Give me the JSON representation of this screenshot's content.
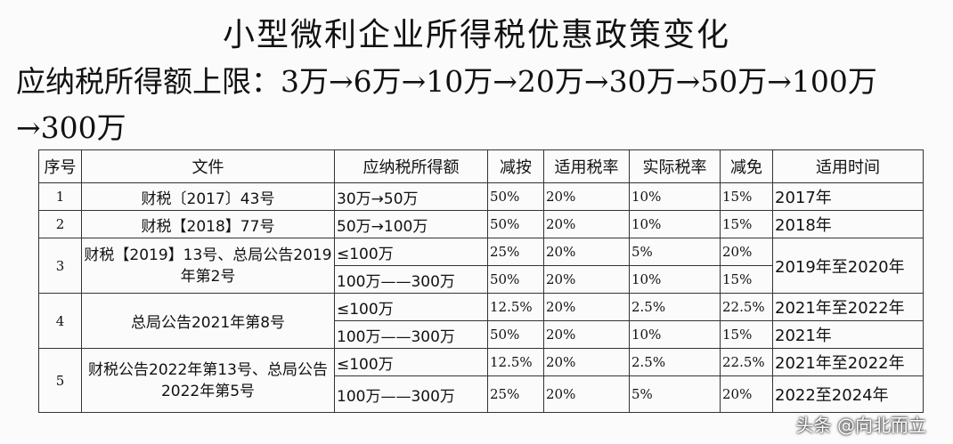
{
  "title": "小型微利企业所得税优惠政策变化",
  "limit_label": "应纳税所得额上限：",
  "limit_value": "3万→6万→10万→20万→30万→50万→100万→300万",
  "headers": [
    "序号",
    "文件",
    "应纳税所得额",
    "减按",
    "适用税率",
    "实际税率",
    "减免",
    "适用时间"
  ],
  "rows": [
    {
      "no": "1",
      "file": "财税〔2017〕43号",
      "income": "30万→50万",
      "reduce": "50%",
      "rate": "20%",
      "actual": "10%",
      "exempt": "15%",
      "time": "2017年"
    },
    {
      "no": "2",
      "file": "财税【2018】77号",
      "income": "50万→100万",
      "reduce": "50%",
      "rate": "20%",
      "actual": "10%",
      "exempt": "15%",
      "time": "2018年"
    },
    {
      "no": "3",
      "file": "财税【2019】13号、总局公告2019年第2号",
      "income": "≤100万",
      "reduce": "25%",
      "rate": "20%",
      "actual": "5%",
      "exempt": "20%",
      "time": "2019年至2020年"
    },
    {
      "income": "100万——300万",
      "reduce": "50%",
      "rate": "20%",
      "actual": "10%",
      "exempt": "15%"
    },
    {
      "no": "4",
      "file": "总局公告2021年第8号",
      "income": "≤100万",
      "reduce": "12.5%",
      "rate": "20%",
      "actual": "2.5%",
      "exempt": "22.5%",
      "time": "2021年至2022年"
    },
    {
      "income": "100万——300万",
      "reduce": "50%",
      "rate": "20%",
      "actual": "10%",
      "exempt": "15%",
      "time": "2021年"
    },
    {
      "no": "5",
      "file": "财税公告2022年第13号、总局公告2022年第5号",
      "income": "≤100万",
      "reduce": "12.5%",
      "rate": "20%",
      "actual": "2.5%",
      "exempt": "22.5%",
      "time": "2021年至2022年"
    },
    {
      "income": "100万——300万",
      "reduce": "25%",
      "rate": "20%",
      "actual": "5%",
      "exempt": "20%",
      "time": "2022至2024年"
    }
  ],
  "watermark": "头条 @向北而立"
}
